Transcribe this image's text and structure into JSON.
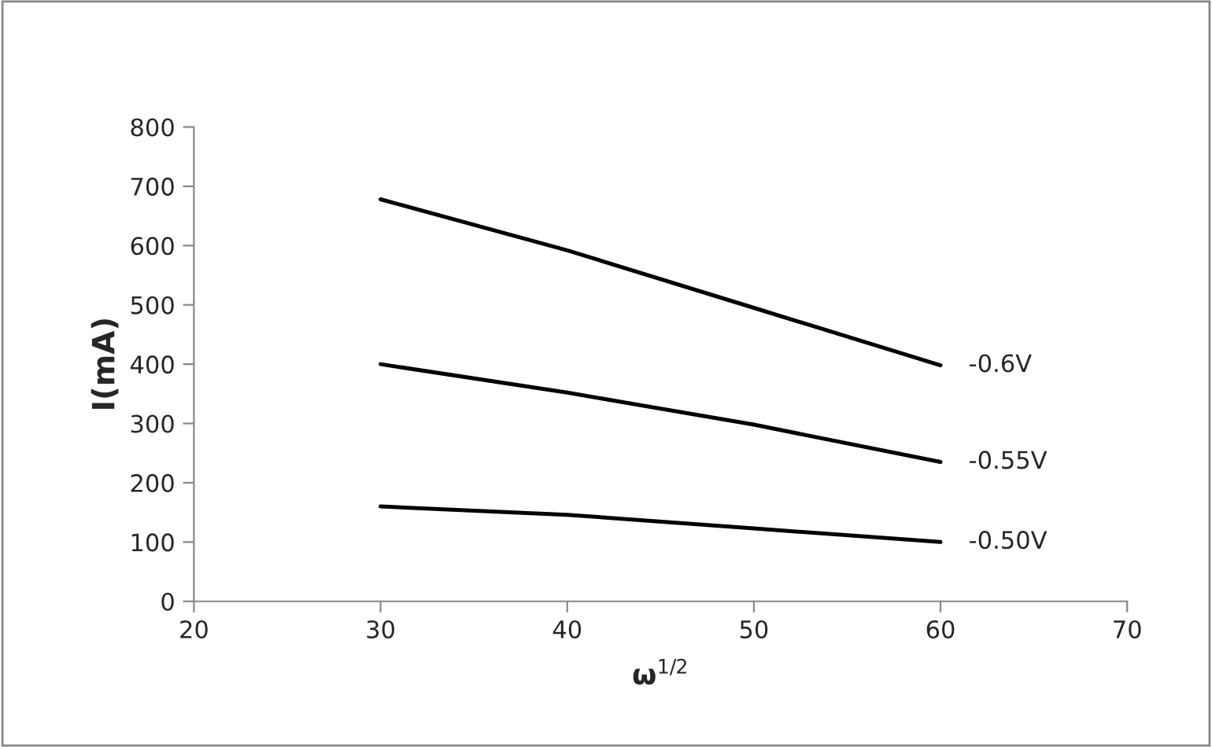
{
  "chart_data": {
    "type": "line",
    "xlabel": "ω$^{1/2}$",
    "ylabel": "I(mA)",
    "x": [
      30,
      40,
      50,
      60
    ],
    "series": [
      {
        "name": "-0.6V",
        "color": "#000000",
        "values": [
          678,
          592,
          495,
          398
        ]
      },
      {
        "name": "-0.55V",
        "color": "#000000",
        "values": [
          400,
          352,
          298,
          235
        ]
      },
      {
        "name": "-0.50V",
        "color": "#000000",
        "values": [
          160,
          146,
          123,
          100
        ]
      }
    ],
    "xlim": [
      20,
      70
    ],
    "xticks": [
      20,
      30,
      40,
      50,
      60,
      70
    ],
    "ylim": [
      0,
      800
    ],
    "yticks": [
      0,
      100,
      200,
      300,
      400,
      500,
      600,
      700,
      800
    ],
    "grid": false,
    "legend": false,
    "marker": "none",
    "line_style": "solid"
  }
}
